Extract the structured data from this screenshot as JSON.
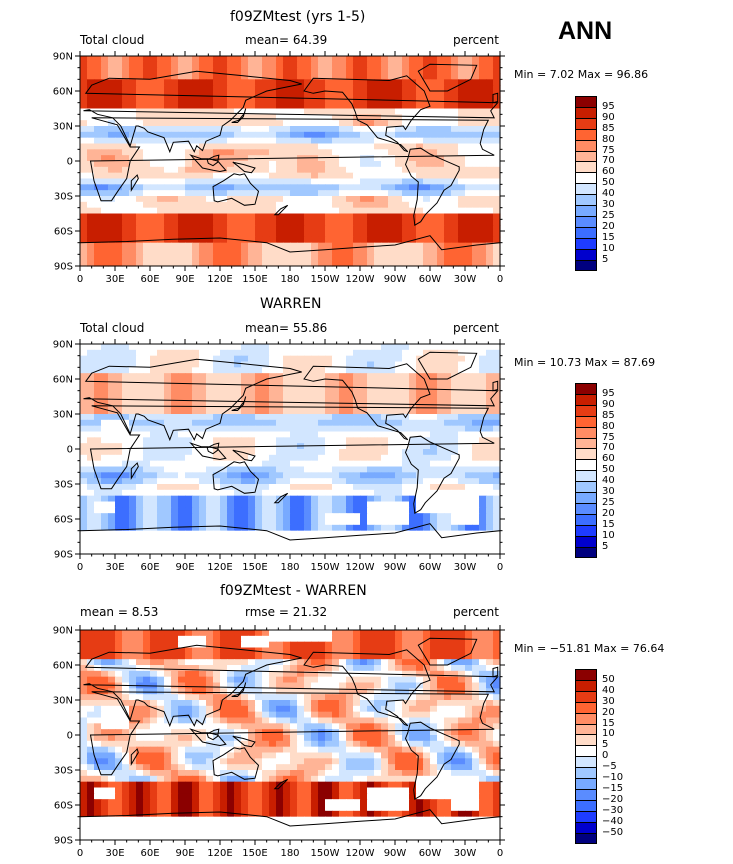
{
  "season": "ANN",
  "panels": [
    {
      "title": "f09ZMtest (yrs 1-5)",
      "left_label": "Total cloud",
      "center_label": "mean=  64.39",
      "right_label": "percent",
      "minmax": "Min =    7.02  Max =   96.86",
      "colorbar_labels": [
        "95",
        "90",
        "85",
        "80",
        "75",
        "70",
        "60",
        "50",
        "40",
        "30",
        "25",
        "20",
        "15",
        "10",
        "5"
      ]
    },
    {
      "title": "WARREN",
      "left_label": "Total cloud",
      "center_label": "mean=  55.86",
      "right_label": "percent",
      "minmax": "Min =   10.73  Max =   87.69",
      "colorbar_labels": [
        "95",
        "90",
        "85",
        "80",
        "75",
        "70",
        "60",
        "50",
        "40",
        "30",
        "25",
        "20",
        "15",
        "10",
        "5"
      ]
    },
    {
      "title": "f09ZMtest - WARREN",
      "left_label": "mean =    8.53",
      "center_label": "rmse =   21.32",
      "right_label": "percent",
      "minmax": "Min = −51.81  Max =   76.64",
      "colorbar_labels": [
        "50",
        "40",
        "30",
        "20",
        "15",
        "10",
        "5",
        "0",
        "−5",
        "−10",
        "−15",
        "−20",
        "−30",
        "−40",
        "−50"
      ]
    }
  ],
  "chart_data": {
    "type": "heatmap",
    "variable": "Total cloud",
    "units": "percent",
    "season": "ANN",
    "lat_ticks": [
      "90N",
      "60N",
      "30N",
      "0",
      "30S",
      "60S",
      "90S"
    ],
    "lon_ticks": [
      "0",
      "30E",
      "60E",
      "90E",
      "120E",
      "150E",
      "180",
      "150W",
      "120W",
      "90W",
      "60W",
      "30W",
      "0"
    ],
    "absolute_levels": [
      5,
      10,
      15,
      20,
      25,
      30,
      40,
      50,
      60,
      70,
      75,
      80,
      85,
      90,
      95
    ],
    "difference_levels": [
      -50,
      -40,
      -30,
      -20,
      -15,
      -10,
      -5,
      0,
      5,
      10,
      15,
      20,
      30,
      40,
      50
    ],
    "colors": [
      "#00007f",
      "#0000cd",
      "#1e3cff",
      "#3c6eff",
      "#5a8cff",
      "#78aaff",
      "#a0c8ff",
      "#d2e6ff",
      "#ffffff",
      "#ffdcc8",
      "#ffb496",
      "#ff8c64",
      "#ff6432",
      "#e63c14",
      "#c81e00",
      "#8b0000"
    ],
    "coastline_color": "#000000",
    "missing_color": "#ffffff",
    "panels": [
      {
        "name": "f09ZMtest (yrs 1-5)",
        "mean": 64.39,
        "min": 7.02,
        "max": 96.86
      },
      {
        "name": "WARREN",
        "mean": 55.86,
        "min": 10.73,
        "max": 87.69
      },
      {
        "name": "f09ZMtest - WARREN",
        "mean": 8.53,
        "rmse": 21.32,
        "min": -51.81,
        "max": 76.64
      }
    ]
  }
}
